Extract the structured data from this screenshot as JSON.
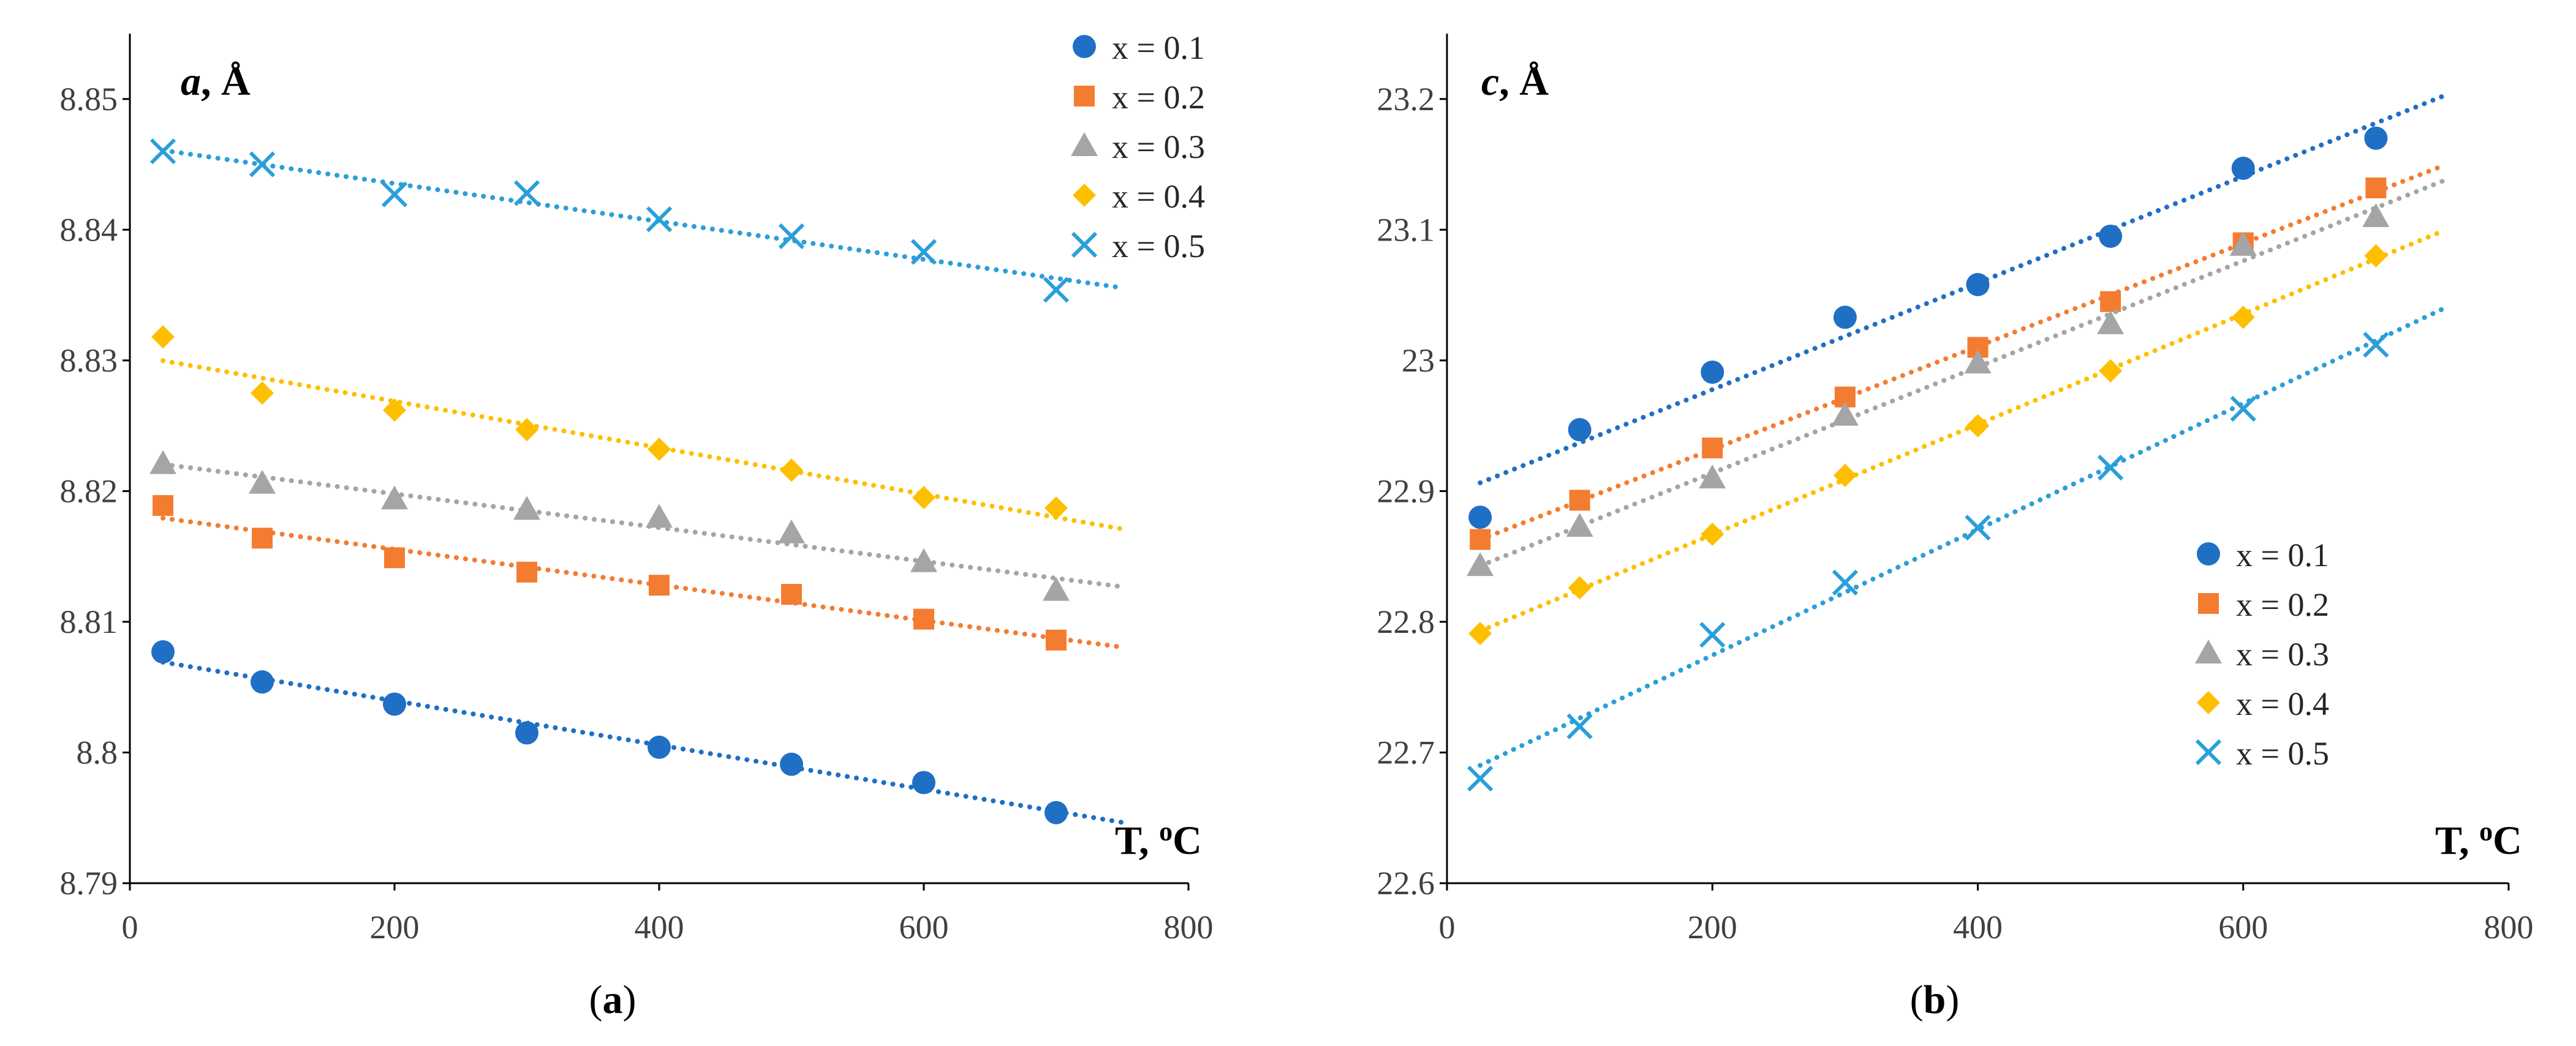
{
  "chart_data": [
    {
      "type": "scatter",
      "title": "",
      "y_title_var": "a",
      "y_title_unit": ", Å",
      "x_title_main": "T, ",
      "x_title_sup": "o",
      "x_title_end": "C",
      "panel_label": "a",
      "xlim": [
        0,
        800
      ],
      "ylim": [
        8.79,
        8.855
      ],
      "xticks": [
        0,
        200,
        400,
        600,
        800
      ],
      "xtick_labels": [
        "0",
        "200",
        "400",
        "600",
        "800"
      ],
      "yticks": [
        8.79,
        8.8,
        8.81,
        8.82,
        8.83,
        8.84,
        8.85
      ],
      "ytick_labels": [
        "8.79",
        "8.8",
        "8.81",
        "8.82",
        "8.83",
        "8.84",
        "8.85"
      ],
      "legend_position": "top-right",
      "trendline": "linear, dotted",
      "x": [
        25,
        100,
        200,
        300,
        400,
        500,
        600,
        700
      ],
      "trend_x_range": [
        25,
        750
      ],
      "series": [
        {
          "name": "x = 0.1",
          "color": "#1f6fc5",
          "marker": "circle",
          "values": [
            8.8077,
            8.8054,
            8.8037,
            8.8015,
            8.8004,
            8.7991,
            8.7977,
            8.7954
          ]
        },
        {
          "name": "x = 0.2",
          "color": "#f47c30",
          "marker": "square",
          "values": [
            8.8189,
            8.8164,
            8.8149,
            8.8138,
            8.8128,
            8.8121,
            8.8102,
            8.8086
          ]
        },
        {
          "name": "x = 0.3",
          "color": "#a5a5a5",
          "marker": "triangle",
          "values": [
            8.8221,
            8.8206,
            8.8194,
            8.8186,
            8.818,
            8.8168,
            8.8146,
            8.8124
          ]
        },
        {
          "name": "x = 0.4",
          "color": "#fdbf00",
          "marker": "diamond",
          "values": [
            8.8318,
            8.8275,
            8.8262,
            8.8247,
            8.8232,
            8.8216,
            8.8195,
            8.8187
          ]
        },
        {
          "name": "x = 0.5",
          "color": "#2a9fd9",
          "marker": "x",
          "values": [
            8.846,
            8.845,
            8.8427,
            8.8428,
            8.8408,
            8.8395,
            8.8383,
            8.8354
          ]
        }
      ]
    },
    {
      "type": "scatter",
      "title": "",
      "y_title_var": "c",
      "y_title_unit": ", Å",
      "x_title_main": "T, ",
      "x_title_sup": "o",
      "x_title_end": "C",
      "panel_label": "b",
      "xlim": [
        0,
        800
      ],
      "ylim": [
        22.6,
        23.25
      ],
      "xticks": [
        0,
        200,
        400,
        600,
        800
      ],
      "xtick_labels": [
        "0",
        "200",
        "400",
        "600",
        "800"
      ],
      "yticks": [
        22.6,
        22.7,
        22.8,
        22.9,
        23.0,
        23.1,
        23.2
      ],
      "ytick_labels": [
        "22.6",
        "22.7",
        "22.8",
        "22.9",
        "23",
        "23.1",
        "23.2"
      ],
      "legend_position": "bottom-right",
      "trendline": "linear, dotted",
      "x": [
        25,
        100,
        200,
        300,
        400,
        500,
        600,
        700
      ],
      "trend_x_range": [
        25,
        750
      ],
      "series": [
        {
          "name": "x = 0.1",
          "color": "#1f6fc5",
          "marker": "circle",
          "values": [
            22.88,
            22.947,
            22.991,
            23.033,
            23.058,
            23.095,
            23.147,
            23.17
          ]
        },
        {
          "name": "x = 0.2",
          "color": "#f47c30",
          "marker": "square",
          "values": [
            22.863,
            22.893,
            22.933,
            22.972,
            23.01,
            23.045,
            23.09,
            23.132
          ]
        },
        {
          "name": "x = 0.3",
          "color": "#a5a5a5",
          "marker": "triangle",
          "values": [
            22.843,
            22.873,
            22.91,
            22.958,
            22.998,
            23.028,
            23.088,
            23.11
          ]
        },
        {
          "name": "x = 0.4",
          "color": "#fdbf00",
          "marker": "diamond",
          "values": [
            22.791,
            22.826,
            22.867,
            22.912,
            22.95,
            22.992,
            23.033,
            23.08
          ]
        },
        {
          "name": "x = 0.5",
          "color": "#2a9fd9",
          "marker": "x",
          "values": [
            22.68,
            22.72,
            22.79,
            22.83,
            22.872,
            22.918,
            22.963,
            23.012
          ]
        }
      ]
    }
  ]
}
